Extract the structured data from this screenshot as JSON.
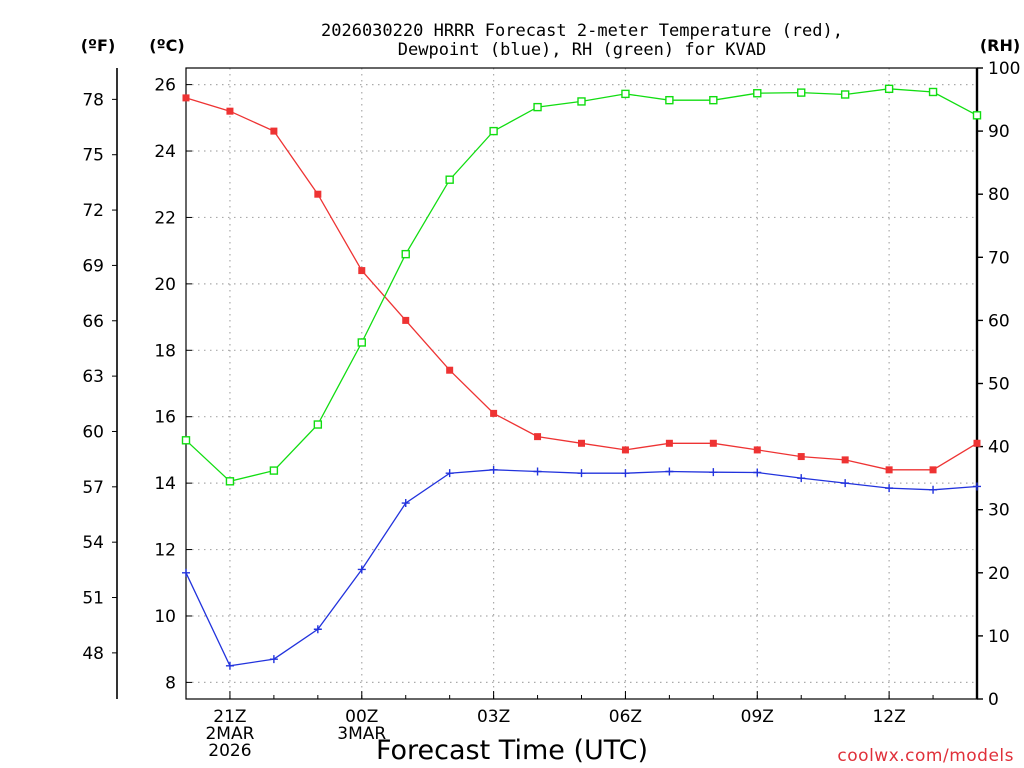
{
  "chart_data": {
    "type": "line",
    "title": [
      "2026030220 HRRR Forecast 2-meter Temperature (red),",
      "Dewpoint (blue), RH (green) for KVAD"
    ],
    "xlabel": "Forecast Time (UTC)",
    "credit": "coolwx.com/models",
    "units": {
      "fahrenheit": "(ºF)",
      "celsius": "(ºC)",
      "rh": "(RH)"
    },
    "x_hours": [
      0,
      1,
      2,
      3,
      4,
      5,
      6,
      7,
      8,
      9,
      10,
      11,
      12,
      13,
      14,
      15,
      16,
      17,
      18
    ],
    "x_ticks": [
      {
        "hour": 1,
        "lines": [
          "21Z",
          "2MAR",
          "2026"
        ]
      },
      {
        "hour": 4,
        "lines": [
          "00Z",
          "3MAR"
        ]
      },
      {
        "hour": 7,
        "lines": [
          "03Z"
        ]
      },
      {
        "hour": 10,
        "lines": [
          "06Z"
        ]
      },
      {
        "hour": 13,
        "lines": [
          "09Z"
        ]
      },
      {
        "hour": 16,
        "lines": [
          "12Z"
        ]
      }
    ],
    "xlim": [
      0,
      18
    ],
    "celsius_axis": {
      "ylim": [
        7.5,
        26.5
      ],
      "ticks": [
        8,
        10,
        12,
        14,
        16,
        18,
        20,
        22,
        24,
        26
      ]
    },
    "fahrenheit_axis": {
      "ticks": [
        48,
        51,
        54,
        57,
        60,
        63,
        66,
        69,
        72,
        75,
        78
      ]
    },
    "rh_axis": {
      "ylim": [
        0,
        100
      ],
      "ticks": [
        0,
        10,
        20,
        30,
        40,
        50,
        60,
        70,
        80,
        90,
        100
      ]
    },
    "series": [
      {
        "name": "2-meter Temperature",
        "axis": "celsius",
        "color": "#ee3333",
        "marker": "filled-square",
        "values": [
          25.6,
          25.2,
          24.6,
          22.7,
          20.4,
          18.9,
          17.4,
          16.1,
          15.4,
          15.2,
          15.0,
          15.2,
          15.2,
          15.0,
          14.8,
          14.7,
          14.4,
          14.4,
          15.2
        ]
      },
      {
        "name": "Dewpoint",
        "axis": "celsius",
        "color": "#2233dd",
        "marker": "plus",
        "values": [
          11.3,
          8.5,
          8.7,
          9.6,
          11.4,
          13.4,
          14.3,
          14.4,
          14.35,
          14.3,
          14.3,
          14.35,
          14.33,
          14.32,
          14.15,
          14.0,
          13.85,
          13.8,
          13.9
        ]
      },
      {
        "name": "RH",
        "axis": "rh",
        "color": "#11dd11",
        "marker": "open-square",
        "values": [
          41,
          34.5,
          36.2,
          43.5,
          56.5,
          70.5,
          82.3,
          90,
          93.8,
          94.7,
          95.9,
          94.9,
          94.9,
          96.0,
          96.1,
          95.8,
          96.7,
          96.2,
          92.5
        ]
      }
    ]
  }
}
